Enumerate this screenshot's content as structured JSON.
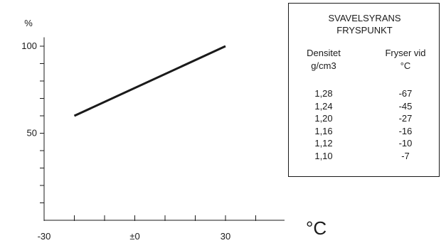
{
  "chart_data": {
    "type": "line",
    "ylabel": "%",
    "xlabel": "°C",
    "xlim": [
      -30,
      50
    ],
    "ylim": [
      0,
      110
    ],
    "x_ticks": [
      -30,
      -20,
      -10,
      0,
      10,
      20,
      30,
      40,
      50
    ],
    "x_tick_labels": [
      {
        "value": -30,
        "label": "-30"
      },
      {
        "value": 0,
        "label": "±0"
      },
      {
        "value": 30,
        "label": "30"
      }
    ],
    "y_ticks": [
      10,
      20,
      30,
      40,
      50,
      60,
      70,
      80,
      90,
      100
    ],
    "y_tick_labels": [
      {
        "value": 50,
        "label": "50"
      },
      {
        "value": 100,
        "label": "100"
      }
    ],
    "series": [
      {
        "x": [
          -20,
          30
        ],
        "y": [
          60,
          100
        ]
      }
    ],
    "line_color": "#1a1a1a"
  },
  "table": {
    "title_line1": "SVAVELSYRANS",
    "title_line2": "FRYSPUNKT",
    "col1_header_line1": "Densitet",
    "col1_header_line2": "g/cm3",
    "col2_header_line1": "Fryser vid",
    "col2_header_line2": "°C",
    "rows": [
      {
        "density": "1,28",
        "freeze": "-67"
      },
      {
        "density": "1,24",
        "freeze": "-45"
      },
      {
        "density": "1,20",
        "freeze": "-27"
      },
      {
        "density": "1,16",
        "freeze": "-16"
      },
      {
        "density": "1,12",
        "freeze": "-10"
      },
      {
        "density": "1,10",
        "freeze": "-7"
      }
    ]
  }
}
